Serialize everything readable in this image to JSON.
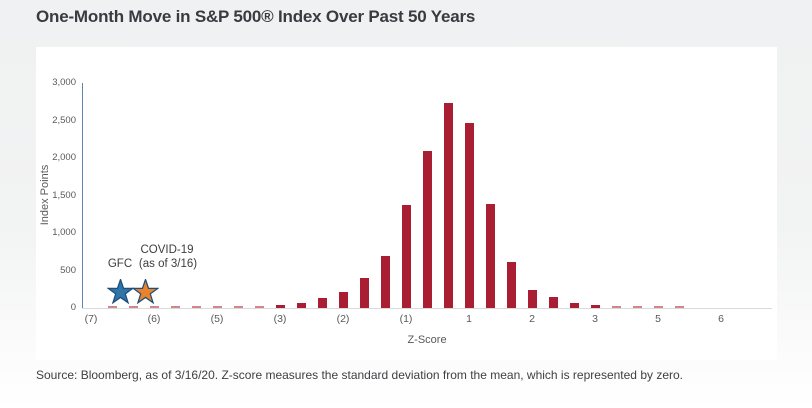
{
  "page": {
    "title": "One-Month Move in S&P 500® Index Over Past 50 Years",
    "footer": "Source: Bloomberg, as of 3/16/20. Z-score measures the standard deviation from the mean, which is represented by zero."
  },
  "chart_data": {
    "type": "bar",
    "title": "One-Month Move in S&P 500® Index Over Past 50 Years",
    "xlabel": "Z-Score",
    "ylabel": "Index Points",
    "ylim": [
      0,
      3000
    ],
    "grid": false,
    "legend_position": "none",
    "ytick_values": [
      0,
      500,
      1000,
      1500,
      2000,
      2500,
      3000
    ],
    "ytick_labels": [
      "0",
      "500",
      "1,000",
      "1,500",
      "2,000",
      "2,500",
      "3,000"
    ],
    "xtick_labels": [
      "(7)",
      "(6)",
      "(5)",
      "(3)",
      "(2)",
      "(1)",
      "1",
      "2",
      "3",
      "5",
      "6"
    ],
    "xtick_slots": [
      0,
      3,
      6,
      9,
      12,
      15,
      18,
      21,
      24,
      27,
      30
    ],
    "num_slots": 32,
    "values": [
      0,
      15,
      15,
      15,
      15,
      15,
      15,
      15,
      15,
      40,
      65,
      130,
      215,
      400,
      690,
      1370,
      2090,
      2730,
      2460,
      1390,
      610,
      240,
      140,
      65,
      35,
      15,
      15,
      15,
      15,
      0,
      0,
      0
    ],
    "annotations": [
      {
        "label": "GFC",
        "marker": "star",
        "color": "#2e74a8",
        "x_slot": 1.4,
        "y": 250
      },
      {
        "label": "COVID-19 (as of 3/16)",
        "marker": "star",
        "color": "#e8832c",
        "x_slot": 2.6,
        "y": 250
      }
    ]
  },
  "annotation_text": {
    "covid_line": "COVID-19",
    "gfc_label": "GFC",
    "asof_label": "(as of 3/16)"
  },
  "colors": {
    "bar": "#a91e32",
    "bar_faint": "#d2848f",
    "star_gfc_fill": "#2e74a8",
    "star_covid_fill": "#e8832c",
    "star_stroke": "#1f4e79",
    "y_axis_line": "#5e87b0",
    "x_axis_line": "#d9d9d9",
    "title_text": "#3a3b41",
    "tick_text": "#595959"
  }
}
